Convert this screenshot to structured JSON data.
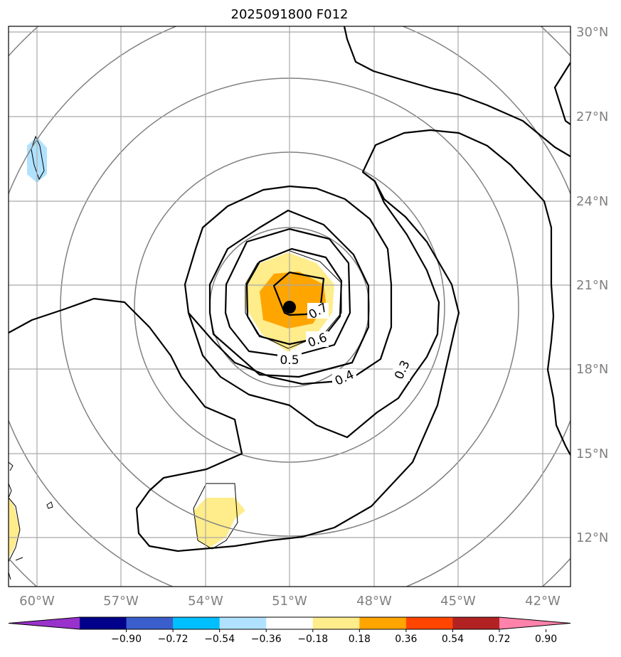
{
  "title": "2025091800 F012",
  "latitude_labels": [
    "30°N",
    "27°N",
    "24°N",
    "21°N",
    "18°N",
    "15°N",
    "12°N"
  ],
  "longitude_labels": [
    "60°W",
    "57°W",
    "54°W",
    "51°W",
    "48°W",
    "45°W",
    "42°W"
  ],
  "contour_labels": [
    "0.7",
    "0.6",
    "0.5",
    "0.4",
    "0.3"
  ],
  "colorbar": {
    "tick_labels": [
      "−0.90",
      "−0.72",
      "−0.54",
      "−0.36",
      "−0.18",
      "0.18",
      "0.36",
      "0.54",
      "0.72",
      "0.90"
    ],
    "colors": [
      "#9932cc",
      "#00008b",
      "#3a5fcd",
      "#00bfff",
      "#b0e2ff",
      "#ffffff",
      "#ffec8b",
      "#ffa500",
      "#ff4500",
      "#b22222",
      "#ff82ab"
    ]
  },
  "storm_center": {
    "lat": 20.2,
    "lon": -51.0
  },
  "colors": {
    "contour": "#000000",
    "range_ring": "#808080",
    "grid": "#a9a9a9",
    "shade_light_yellow": "#ffec8b",
    "shade_orange": "#ffa500",
    "shade_light_blue": "#b0e2ff"
  }
}
